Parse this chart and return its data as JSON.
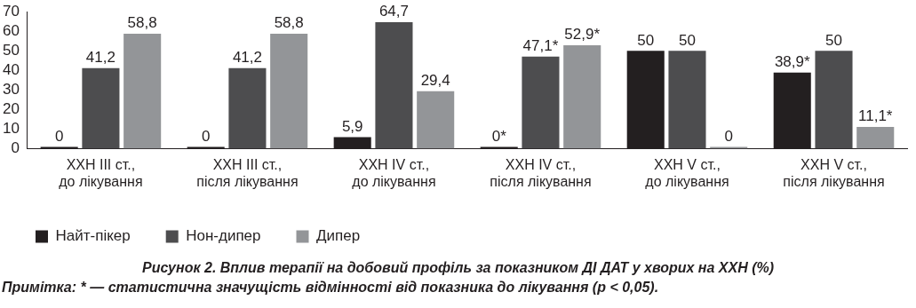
{
  "chart_data": {
    "type": "bar",
    "title": "Рисунок 2.  Вплив терапії на добовий профіль за показником ДІ ДАТ у хворих на ХХН (%)",
    "annotations": [
      "Примітка: * — статистична значущість відмінності від показника до лікування (p < 0,05)."
    ],
    "categories": [
      "ХХН III ст.,\nдо лікування",
      "ХХН III ст.,\nпісля лікування",
      "ХХН IV ст.,\nдо лікування",
      "ХХН IV ст.,\nпісля лікування",
      "ХХН V ст.,\nдо лікування",
      "ХХН V ст.,\nпісля лікування"
    ],
    "series": [
      {
        "name": "Найт-пікер",
        "color": "#231f20",
        "values": [
          0,
          0,
          5.9,
          0,
          50,
          38.9
        ],
        "value_labels": [
          "0",
          "0",
          "5,9",
          "0*",
          "50",
          "38,9*"
        ]
      },
      {
        "name": "Нон-дипер",
        "color": "#4d4d4f",
        "values": [
          41.2,
          41.2,
          64.7,
          47.1,
          50,
          50
        ],
        "value_labels": [
          "41,2",
          "41,2",
          "64,7",
          "47,1*",
          "50",
          "50"
        ]
      },
      {
        "name": "Дипер",
        "color": "#939598",
        "values": [
          58.8,
          58.8,
          29.4,
          52.9,
          0,
          11.1
        ],
        "value_labels": [
          "58,8",
          "58,8",
          "29,4",
          "52,9*",
          "0",
          "11,1*"
        ]
      }
    ],
    "ylim": [
      0,
      70
    ],
    "yticks": [
      0,
      10,
      20,
      30,
      40,
      50,
      60,
      70
    ],
    "grid": false,
    "legend": "bottom left"
  }
}
